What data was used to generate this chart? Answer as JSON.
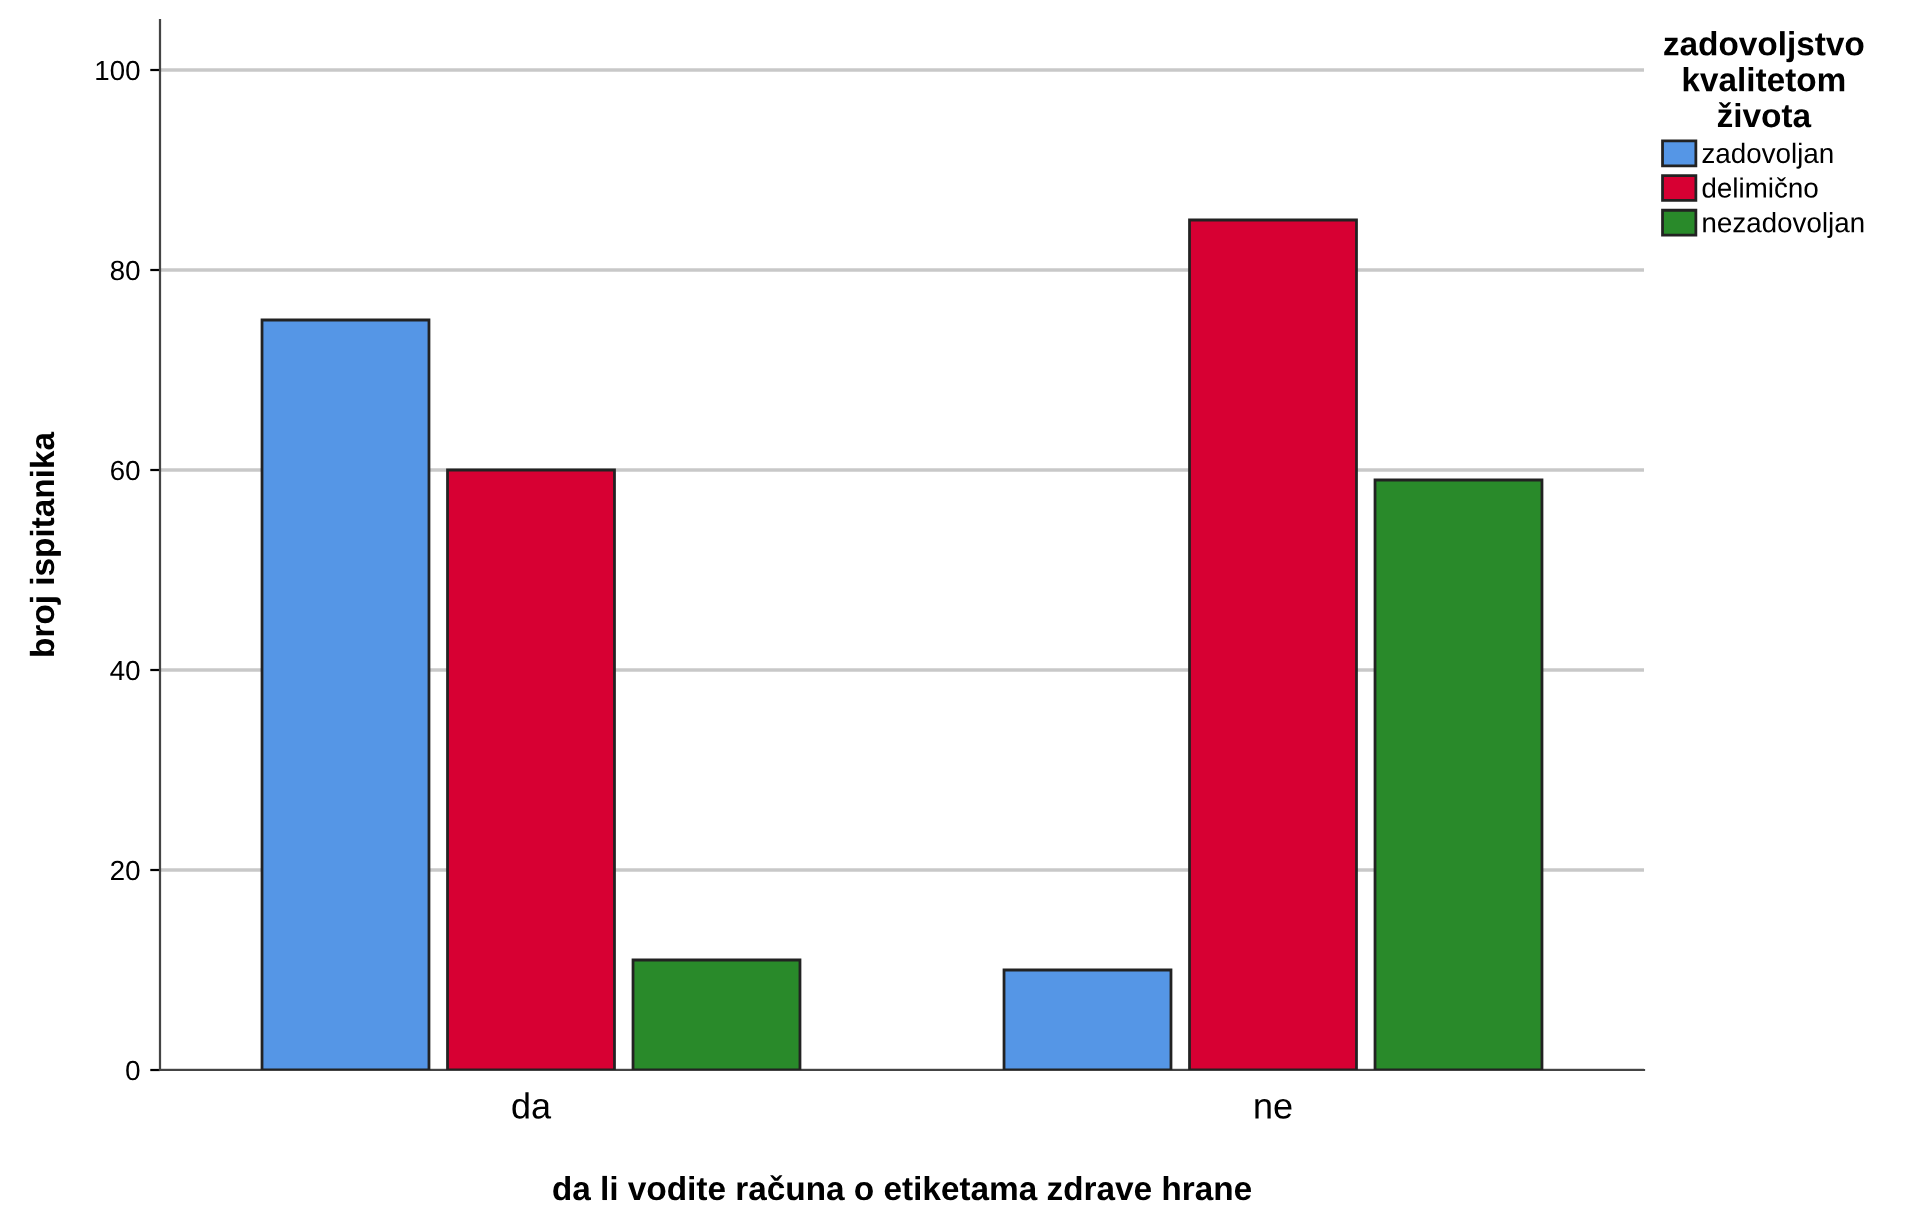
{
  "chart_data": {
    "type": "bar",
    "xlabel": "da li vodite računa o etiketama zdrave hrane",
    "ylabel": "broj ispitanika",
    "legend_title": "zadovoljstvo\nkvalitetom\nživota",
    "categories": [
      "da",
      "ne"
    ],
    "series": [
      {
        "name": "zadovoljan",
        "color": "#5596e6",
        "values": [
          75,
          10
        ]
      },
      {
        "name": "delimično",
        "color": "#d70033",
        "values": [
          60,
          85
        ]
      },
      {
        "name": "nezadovoljan",
        "color": "#298a2a",
        "values": [
          11,
          59
        ]
      }
    ],
    "ylim": [
      0,
      105
    ],
    "yticks": [
      0,
      20,
      40,
      60,
      80,
      100
    ],
    "grid": "y",
    "legend": "top right"
  }
}
